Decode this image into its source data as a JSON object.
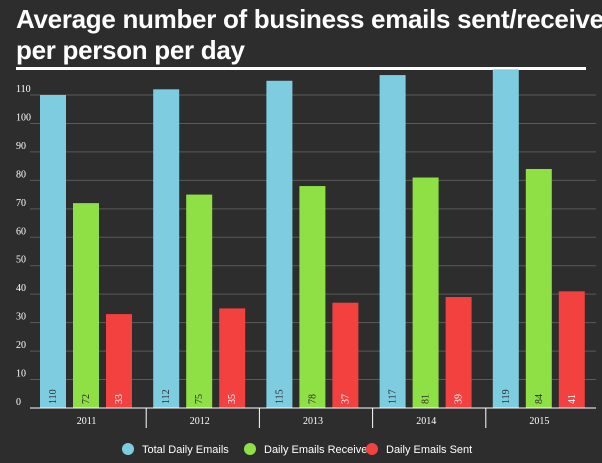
{
  "title_lines": [
    "Average number of business emails sent/received",
    "per person per day"
  ],
  "chart_data": {
    "type": "bar",
    "title": "Average number of business emails sent/received per person per day",
    "categories": [
      "2011",
      "2012",
      "2013",
      "2014",
      "2015"
    ],
    "series": [
      {
        "name": "Total Daily Emails",
        "color": "#7ecce0",
        "values": [
          110,
          112,
          115,
          117,
          119
        ]
      },
      {
        "name": "Daily Emails Received",
        "color": "#8ee045",
        "values": [
          72,
          75,
          78,
          81,
          84
        ]
      },
      {
        "name": "Daily Emails Sent",
        "color": "#f2413e",
        "values": [
          33,
          35,
          37,
          39,
          41
        ]
      }
    ],
    "yticks": [
      0,
      10,
      20,
      30,
      40,
      50,
      60,
      70,
      80,
      90,
      100,
      110
    ],
    "ylim": [
      0,
      120
    ],
    "grid": true,
    "legend_position": "bottom"
  },
  "colors": {
    "background": "#2d2d2d",
    "grid": "#5a5a5a",
    "axis": "#ffffff"
  }
}
